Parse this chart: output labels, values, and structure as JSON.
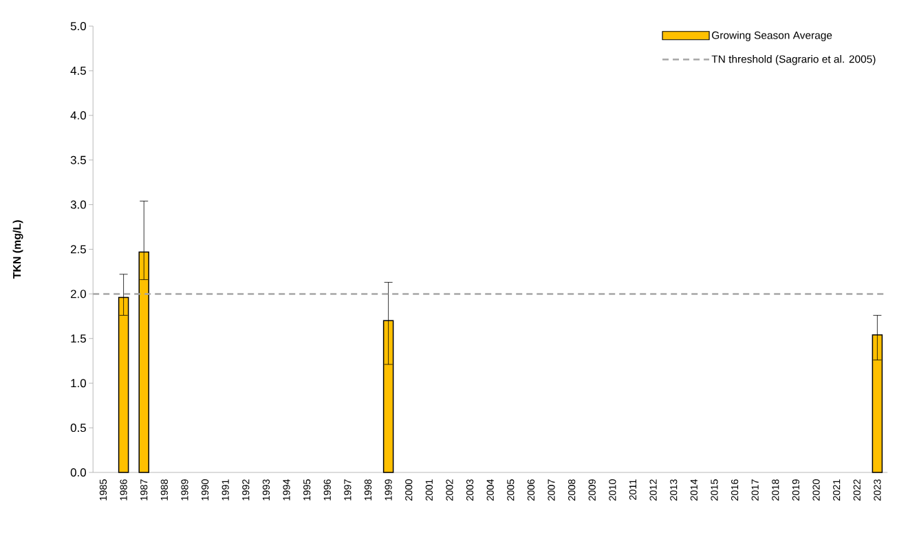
{
  "chart_data": {
    "type": "bar",
    "ylabel": "TKN (mg/L)",
    "categories": [
      "1985",
      "1986",
      "1987",
      "1988",
      "1989",
      "1990",
      "1991",
      "1992",
      "1993",
      "1994",
      "1995",
      "1996",
      "1997",
      "1998",
      "1999",
      "2000",
      "2001",
      "2002",
      "2003",
      "2004",
      "2005",
      "2006",
      "2007",
      "2008",
      "2009",
      "2010",
      "2011",
      "2012",
      "2013",
      "2014",
      "2015",
      "2016",
      "2017",
      "2018",
      "2019",
      "2020",
      "2021",
      "2022",
      "2023"
    ],
    "series": [
      {
        "name": "Growing Season Average",
        "color": "#ffc000",
        "values": [
          null,
          1.96,
          2.47,
          null,
          null,
          null,
          null,
          null,
          null,
          null,
          null,
          null,
          null,
          null,
          1.7,
          null,
          null,
          null,
          null,
          null,
          null,
          null,
          null,
          null,
          null,
          null,
          null,
          null,
          null,
          null,
          null,
          null,
          null,
          null,
          null,
          null,
          null,
          null,
          1.54
        ],
        "errors": [
          null,
          [
            1.76,
            2.22
          ],
          [
            2.16,
            3.04
          ],
          null,
          null,
          null,
          null,
          null,
          null,
          null,
          null,
          null,
          null,
          null,
          [
            1.21,
            2.13
          ],
          null,
          null,
          null,
          null,
          null,
          null,
          null,
          null,
          null,
          null,
          null,
          null,
          null,
          null,
          null,
          null,
          null,
          null,
          null,
          null,
          null,
          null,
          null,
          [
            1.26,
            1.76
          ]
        ]
      }
    ],
    "ylim": [
      0,
      5
    ],
    "yticks": [
      {
        "value": 0,
        "label": "0.0"
      },
      {
        "value": 0.5,
        "label": "0.5"
      },
      {
        "value": 1,
        "label": "1.0"
      },
      {
        "value": 1.5,
        "label": "1.5"
      },
      {
        "value": 2,
        "label": "2.0"
      },
      {
        "value": 2.5,
        "label": "2.5"
      },
      {
        "value": 3,
        "label": "3.0"
      },
      {
        "value": 3.5,
        "label": "3.5"
      },
      {
        "value": 4,
        "label": "4.0"
      },
      {
        "value": 4.5,
        "label": "4.5"
      },
      {
        "value": 5,
        "label": "5.0"
      }
    ],
    "ref_lines": [
      {
        "axis": "y",
        "value": 2,
        "label": "TN threshold (Sagrario et al. 2005)",
        "color": "#a6a6a6",
        "line_style": "dashed"
      }
    ],
    "legend": "top right",
    "grid": false
  }
}
